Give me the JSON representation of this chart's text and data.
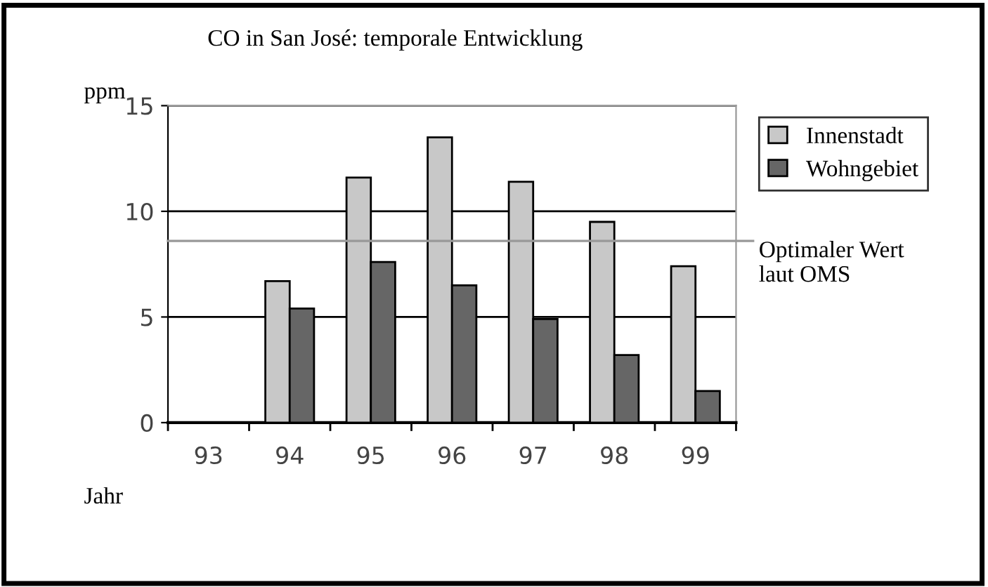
{
  "chart_data": {
    "type": "bar",
    "title": "CO in San José: temporale Entwicklung",
    "ylabel": "ppm",
    "xlabel": "Jahr",
    "categories": [
      "93",
      "94",
      "95",
      "96",
      "97",
      "98",
      "99"
    ],
    "series": [
      {
        "name": "Innenstadt",
        "color": "#c8c8c8",
        "values": [
          null,
          6.7,
          11.6,
          13.5,
          11.4,
          9.5,
          7.4
        ]
      },
      {
        "name": "Wohngebiet",
        "color": "#666666",
        "values": [
          null,
          5.4,
          7.6,
          6.5,
          4.9,
          3.2,
          1.5
        ]
      }
    ],
    "ylim": [
      0,
      15
    ],
    "yticks": [
      0,
      5,
      10,
      15
    ],
    "grid": "y",
    "legend": "top right",
    "ref_lines": [
      {
        "axis": "y",
        "value": 8.6,
        "label": "Optimaler Wert\nlaut OMS",
        "color": "#999999"
      }
    ]
  }
}
